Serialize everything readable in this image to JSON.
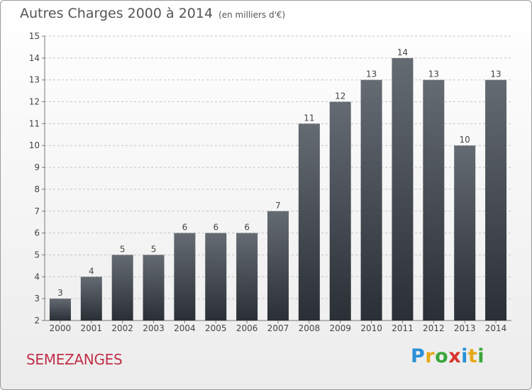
{
  "header": {
    "title": "Autres Charges 2000 à 2014",
    "subtitle": "(en milliers d'€)"
  },
  "footer": {
    "place_name": "SEMEZANGES",
    "brand_letters": [
      {
        "char": "P",
        "color": "#2b8fd6"
      },
      {
        "char": "r",
        "color": "#e6a817"
      },
      {
        "char": "o",
        "color": "#3aa63a"
      },
      {
        "char": "x",
        "color": "#d8342c"
      },
      {
        "char": "i",
        "color": "#2b8fd6"
      },
      {
        "char": "t",
        "color": "#e6a817"
      },
      {
        "char": "i",
        "color": "#3aa63a"
      }
    ]
  },
  "chart_data": {
    "type": "bar",
    "categories": [
      "2000",
      "2001",
      "2002",
      "2003",
      "2004",
      "2005",
      "2006",
      "2007",
      "2008",
      "2009",
      "2010",
      "2011",
      "2012",
      "2013",
      "2014"
    ],
    "values": [
      3,
      4,
      5,
      5,
      6,
      6,
      6,
      7,
      11,
      12,
      13,
      14,
      13,
      10,
      13
    ],
    "ylim": [
      2,
      15
    ],
    "yticks": [
      2,
      3,
      4,
      5,
      6,
      7,
      8,
      9,
      10,
      11,
      12,
      13,
      14,
      15
    ],
    "grid": true,
    "data_labels": true,
    "bar_color_top": "#656b73",
    "bar_color_bottom": "#2a2f36"
  }
}
